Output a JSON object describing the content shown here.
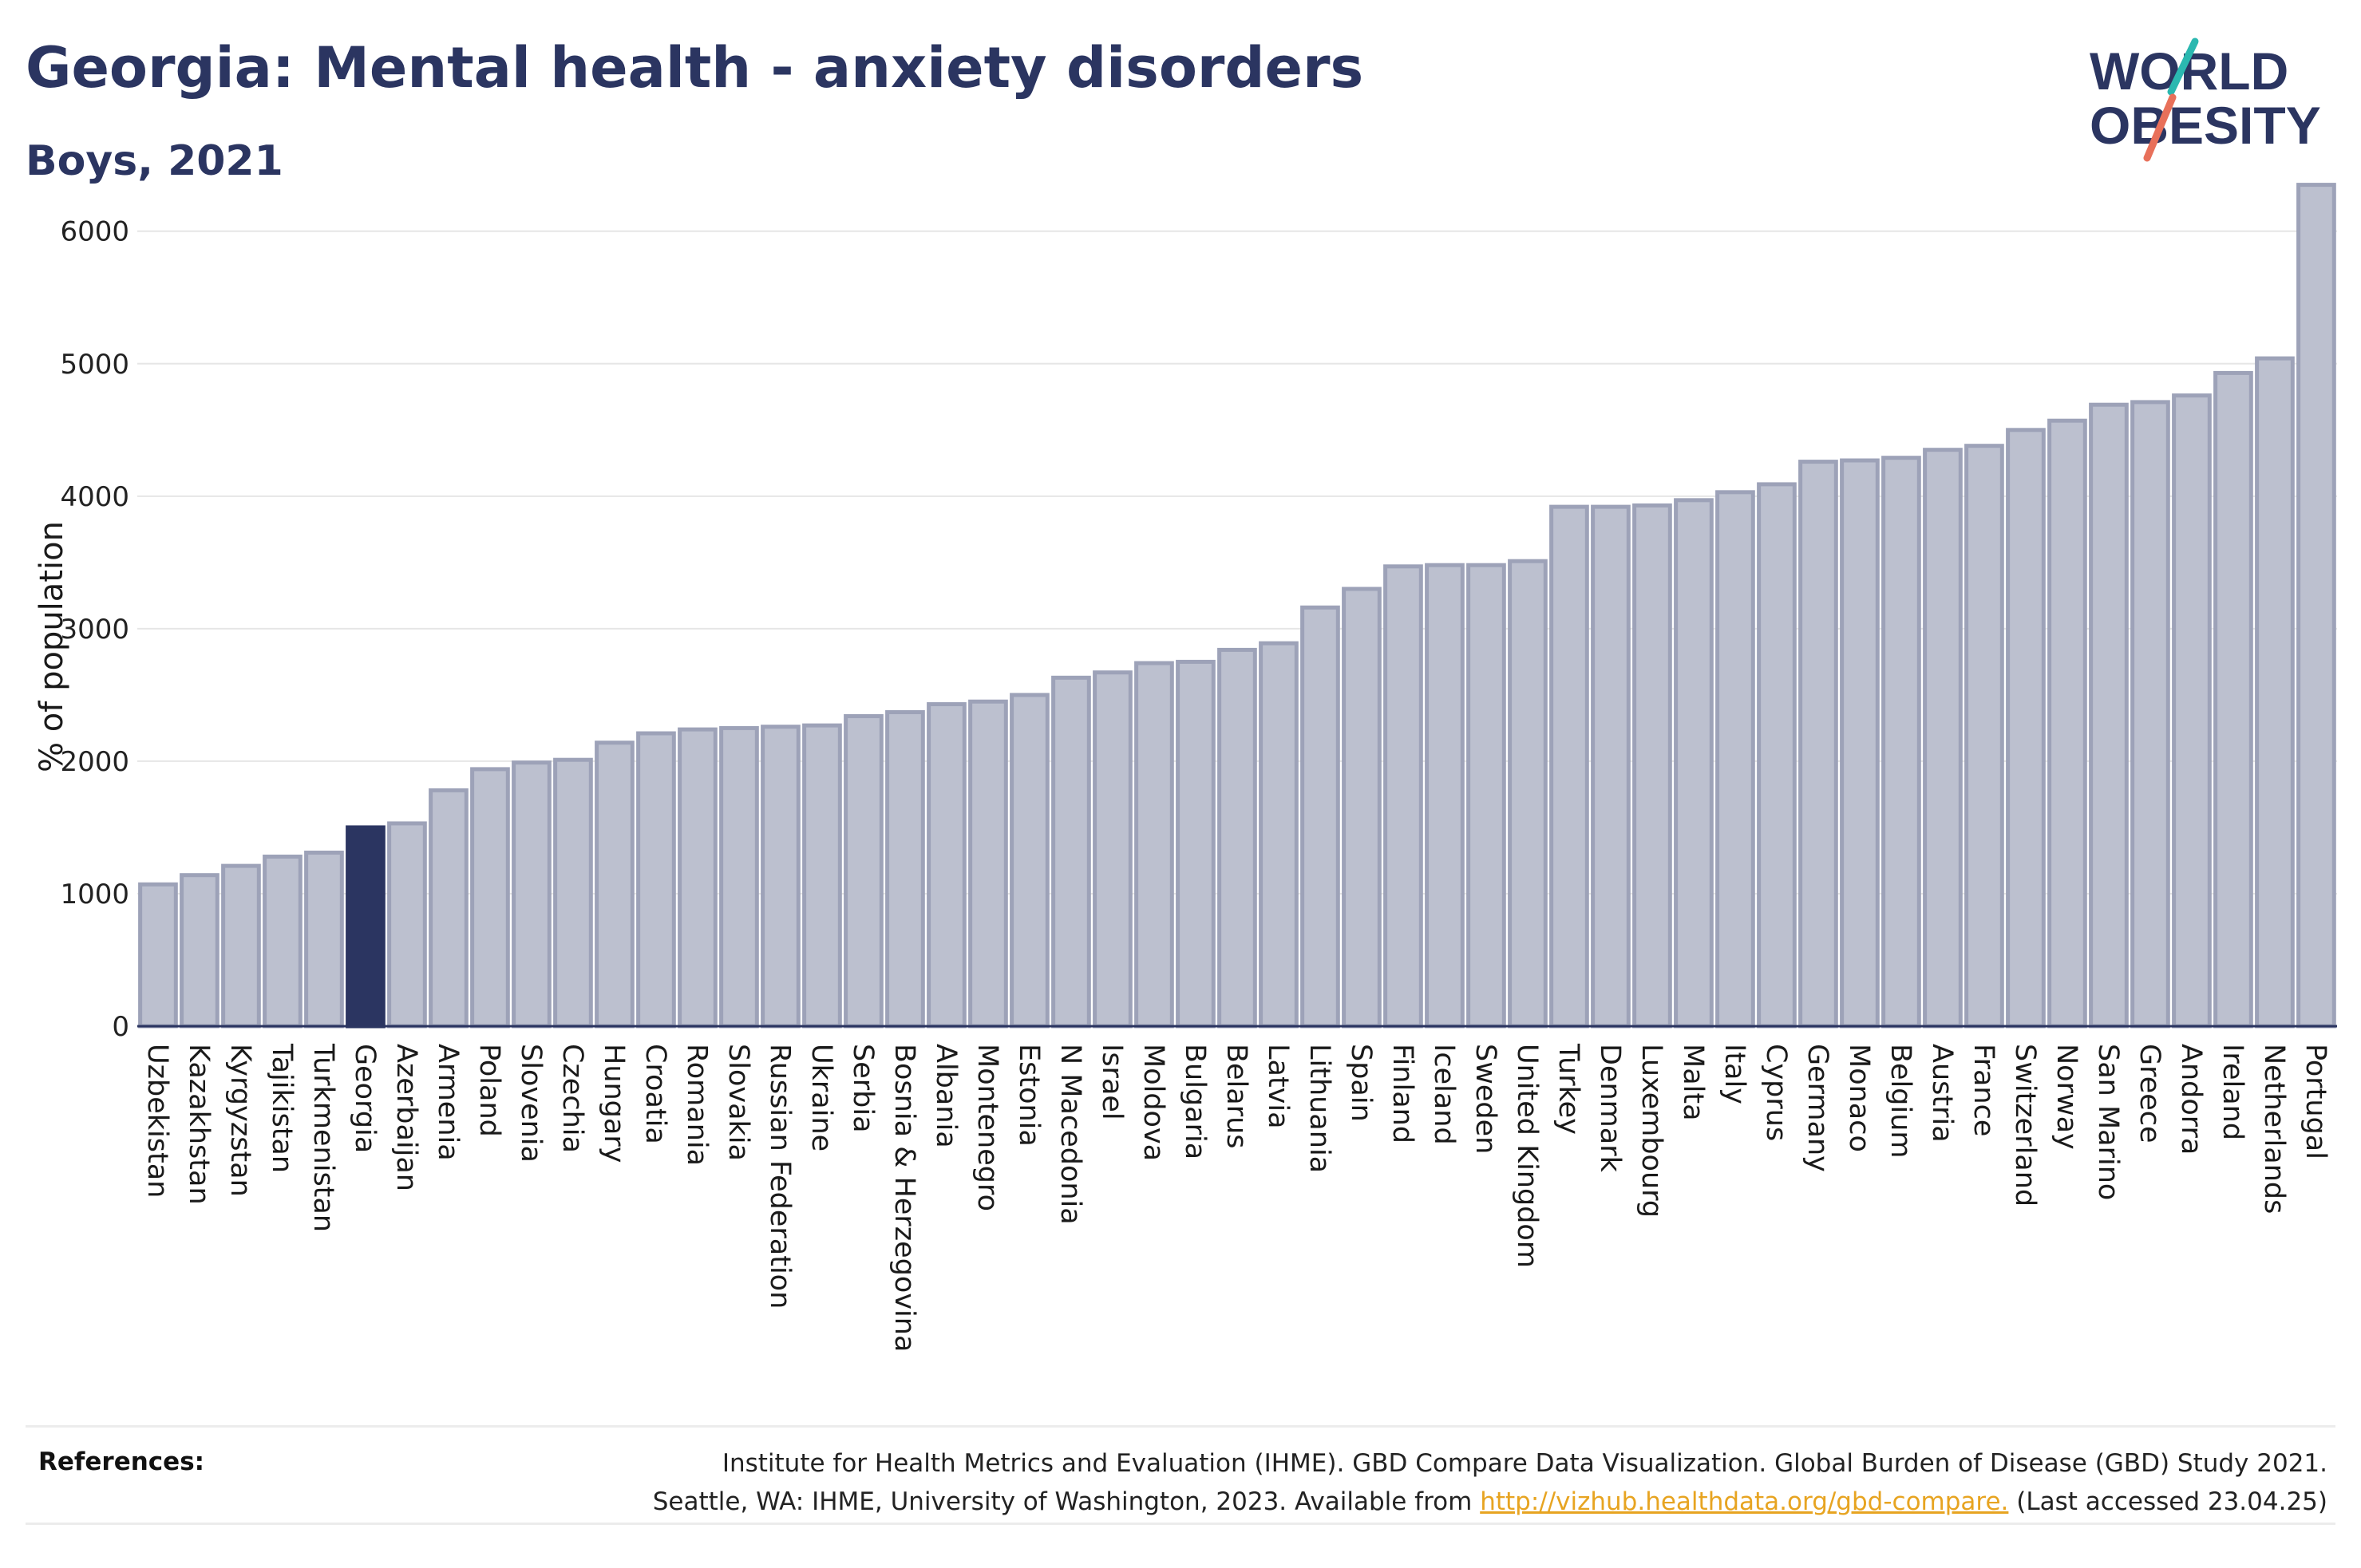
{
  "header": {
    "title": "Georgia: Mental health - anxiety disorders",
    "subtitle": "Boys, 2021"
  },
  "logo": {
    "line1": "WORLD",
    "line2": "OBESITY",
    "colors": {
      "text": "#2b3561",
      "slash_teal": "#2bb8b0",
      "slash_coral": "#e8705a"
    }
  },
  "references": {
    "label": "References:",
    "line1": "Institute for Health Metrics and Evaluation (IHME). GBD Compare Data Visualization. Global Burden of Disease (GBD) Study 2021.",
    "line2_before": "Seattle, WA: IHME, University of Washington, 2023. Available from ",
    "link": "http://vizhub.healthdata.org/gbd-compare.",
    "line2_after": " (Last accessed 23.04.25)"
  },
  "chart_data": {
    "type": "bar",
    "title": "Georgia: Mental health - anxiety disorders",
    "subtitle": "Boys, 2021",
    "xlabel": "",
    "ylabel": "% of population",
    "ylim": [
      0,
      6450
    ],
    "yticks": [
      0,
      1000,
      2000,
      3000,
      4000,
      5000,
      6000
    ],
    "grid": true,
    "highlight": "Georgia",
    "colors": {
      "bar": "#bcc0cf",
      "bar_edge": "#9da2b8",
      "highlight": "#2b3561",
      "axis": "#2b3561",
      "grid": "#e6e6e6"
    },
    "categories": [
      "Uzbekistan",
      "Kazakhstan",
      "Kyrgyzstan",
      "Tajikistan",
      "Turkmenistan",
      "Georgia",
      "Azerbaijan",
      "Armenia",
      "Poland",
      "Slovenia",
      "Czechia",
      "Hungary",
      "Croatia",
      "Romania",
      "Slovakia",
      "Russian Federation",
      "Ukraine",
      "Serbia",
      "Bosnia & Herzegovina",
      "Albania",
      "Montenegro",
      "Estonia",
      "N Macedonia",
      "Israel",
      "Moldova",
      "Bulgaria",
      "Belarus",
      "Latvia",
      "Lithuania",
      "Spain",
      "Finland",
      "Iceland",
      "Sweden",
      "United Kingdom",
      "Turkey",
      "Denmark",
      "Luxembourg",
      "Malta",
      "Italy",
      "Cyprus",
      "Germany",
      "Monaco",
      "Belgium",
      "Austria",
      "France",
      "Switzerland",
      "Norway",
      "San Marino",
      "Greece",
      "Andorra",
      "Ireland",
      "Netherlands",
      "Portugal"
    ],
    "values": [
      1070,
      1140,
      1210,
      1280,
      1310,
      1500,
      1530,
      1780,
      1940,
      1990,
      2010,
      2140,
      2210,
      2240,
      2250,
      2260,
      2270,
      2340,
      2370,
      2430,
      2450,
      2500,
      2630,
      2670,
      2740,
      2750,
      2840,
      2890,
      3160,
      3300,
      3470,
      3480,
      3480,
      3510,
      3920,
      3920,
      3930,
      3970,
      4030,
      4090,
      4260,
      4270,
      4290,
      4350,
      4380,
      4500,
      4570,
      4690,
      4710,
      4760,
      4930,
      5040,
      6350
    ]
  }
}
